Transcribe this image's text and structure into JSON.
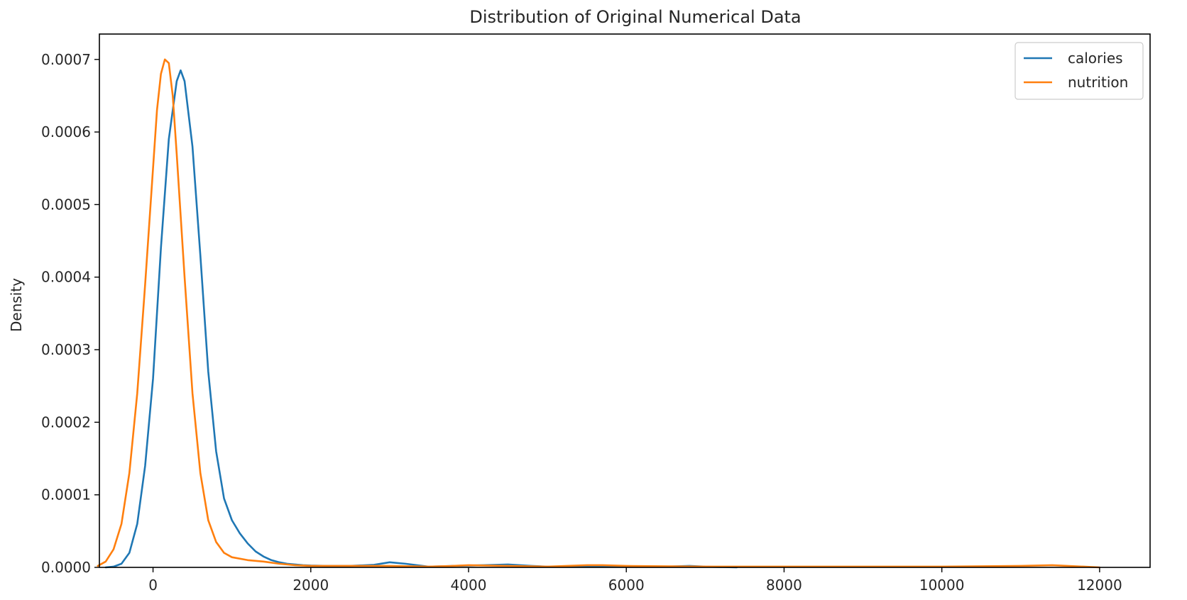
{
  "chart_data": {
    "type": "line",
    "title": "Distribution of Original Numerical Data",
    "xlabel": "",
    "ylabel": "Density",
    "xlim": [
      -680,
      12640
    ],
    "ylim": [
      0,
      0.000735
    ],
    "x_ticks": [
      0,
      2000,
      4000,
      6000,
      8000,
      10000,
      12000
    ],
    "x_tick_labels": [
      "0",
      "2000",
      "4000",
      "6000",
      "8000",
      "10000",
      "12000"
    ],
    "y_ticks": [
      0,
      0.0001,
      0.0002,
      0.0003,
      0.0004,
      0.0005,
      0.0006,
      0.0007
    ],
    "y_tick_labels": [
      "0.0000",
      "0.0001",
      "0.0002",
      "0.0003",
      "0.0004",
      "0.0005",
      "0.0006",
      "0.0007"
    ],
    "grid": false,
    "legend_position": "top-right",
    "series": [
      {
        "name": "calories",
        "color": "#1f77b4",
        "x": [
          -600,
          -500,
          -400,
          -300,
          -200,
          -100,
          0,
          100,
          200,
          300,
          350,
          400,
          500,
          600,
          700,
          800,
          900,
          1000,
          1100,
          1200,
          1300,
          1400,
          1500,
          1600,
          1700,
          1800,
          1900,
          2000,
          2200,
          2500,
          2800,
          3000,
          3200,
          3500,
          3800,
          4200,
          4500,
          4800,
          5000,
          5400,
          6000,
          6500,
          6800,
          7000,
          7400
        ],
        "y": [
          0,
          1e-06,
          5e-06,
          2e-05,
          6e-05,
          0.00014,
          0.00026,
          0.00044,
          0.00059,
          0.00067,
          0.000685,
          0.00067,
          0.00058,
          0.00043,
          0.00027,
          0.00016,
          9.5e-05,
          6.5e-05,
          4.7e-05,
          3.3e-05,
          2.2e-05,
          1.5e-05,
          1e-05,
          7e-06,
          5e-06,
          4e-06,
          3e-06,
          2.5e-06,
          2e-06,
          2e-06,
          3.5e-06,
          7e-06,
          5e-06,
          1e-06,
          2e-06,
          3e-06,
          4e-06,
          2e-06,
          1e-06,
          1e-06,
          1e-06,
          1e-06,
          2e-06,
          1e-06,
          0
        ]
      },
      {
        "name": "nutrition",
        "color": "#ff7f0e",
        "x": [
          -700,
          -600,
          -500,
          -400,
          -300,
          -200,
          -100,
          0,
          50,
          100,
          150,
          200,
          250,
          300,
          400,
          500,
          600,
          700,
          800,
          900,
          1000,
          1200,
          1400,
          1600,
          1800,
          2000,
          2500,
          3000,
          3500,
          3800,
          4000,
          4500,
          5000,
          5500,
          5700,
          6000,
          7000,
          8000,
          9000,
          10000,
          11000,
          11400,
          11800,
          12000
        ],
        "y": [
          2e-06,
          8e-06,
          2.5e-05,
          6e-05,
          0.00013,
          0.00024,
          0.00039,
          0.00055,
          0.00063,
          0.00068,
          0.0007,
          0.000695,
          0.00065,
          0.00057,
          0.0004,
          0.00024,
          0.00013,
          6.5e-05,
          3.5e-05,
          2e-05,
          1.4e-05,
          1e-05,
          8e-06,
          5e-06,
          3e-06,
          2e-06,
          2e-06,
          2e-06,
          1e-06,
          2e-06,
          3e-06,
          2e-06,
          1e-06,
          3e-06,
          3e-06,
          2e-06,
          1e-06,
          1e-06,
          1e-06,
          1e-06,
          2e-06,
          3e-06,
          1e-06,
          0
        ]
      }
    ]
  }
}
